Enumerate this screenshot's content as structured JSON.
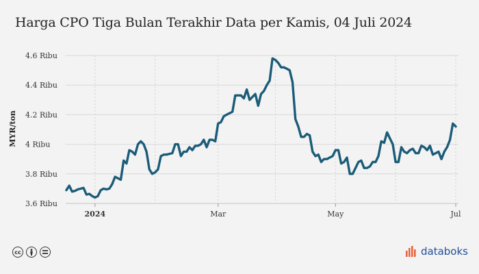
{
  "colors": {
    "line": "#1b5c78",
    "grid": "#d9d9d9",
    "axis": "#cfcfcf",
    "brand": "#1f4f9a",
    "brand_accent": "#e8643c"
  },
  "footer": {
    "license_icons": [
      "cc-icon",
      "attribution-icon",
      "equals-icon"
    ],
    "brand": "databoks"
  },
  "chart_data": {
    "type": "line",
    "title": "Harga CPO Tiga Bulan Terakhir Data per Kamis, 04 Juli 2024",
    "ylabel": "MYR/ton",
    "ylim": [
      3600,
      4600
    ],
    "yticks": [
      {
        "value": 3600,
        "label": "3.6 Ribu"
      },
      {
        "value": 3800,
        "label": "3.8 Ribu"
      },
      {
        "value": 4000,
        "label": "4 Ribu"
      },
      {
        "value": 4200,
        "label": "4.2 Ribu"
      },
      {
        "value": 4400,
        "label": "4.4 Ribu"
      },
      {
        "value": 4600,
        "label": "4.6 Ribu"
      }
    ],
    "xticks": [
      {
        "label": "2024",
        "index": 10,
        "bold": true
      },
      {
        "label": "Mar",
        "index": 53
      },
      {
        "label": "May",
        "index": 94
      },
      {
        "label": "Jul",
        "index": 136
      }
    ],
    "minor_gridlines_at_index": [
      10,
      31,
      53,
      73,
      94,
      115,
      136
    ],
    "series": [
      {
        "values": [
          3690,
          3720,
          3680,
          3685,
          3695,
          3700,
          3705,
          3660,
          3665,
          3650,
          3640,
          3650,
          3690,
          3700,
          3695,
          3700,
          3730,
          3780,
          3770,
          3760,
          3890,
          3870,
          3960,
          3950,
          3930,
          4000,
          4020,
          4000,
          3950,
          3830,
          3800,
          3810,
          3830,
          3920,
          3930,
          3930,
          3935,
          3940,
          4000,
          4000,
          3920,
          3950,
          3950,
          3980,
          3960,
          3990,
          3990,
          4000,
          4030,
          3980,
          4030,
          4030,
          4020,
          4140,
          4150,
          4190,
          4200,
          4210,
          4220,
          4330,
          4330,
          4330,
          4310,
          4370,
          4300,
          4320,
          4340,
          4260,
          4340,
          4360,
          4400,
          4430,
          4580,
          4570,
          4550,
          4520,
          4520,
          4510,
          4500,
          4420,
          4170,
          4120,
          4050,
          4050,
          4070,
          4060,
          3950,
          3920,
          3930,
          3880,
          3900,
          3900,
          3910,
          3920,
          3960,
          3960,
          3870,
          3880,
          3910,
          3800,
          3800,
          3840,
          3880,
          3890,
          3840,
          3840,
          3850,
          3880,
          3880,
          3920,
          4020,
          4010,
          4080,
          4040,
          4000,
          3880,
          3880,
          3980,
          3950,
          3940,
          3960,
          3970,
          3940,
          3940,
          3990,
          3980,
          3960,
          3990,
          3930,
          3940,
          3950,
          3900,
          3950,
          3980,
          4030,
          4140,
          4120
        ]
      }
    ],
    "grid": true,
    "legend": "none"
  }
}
